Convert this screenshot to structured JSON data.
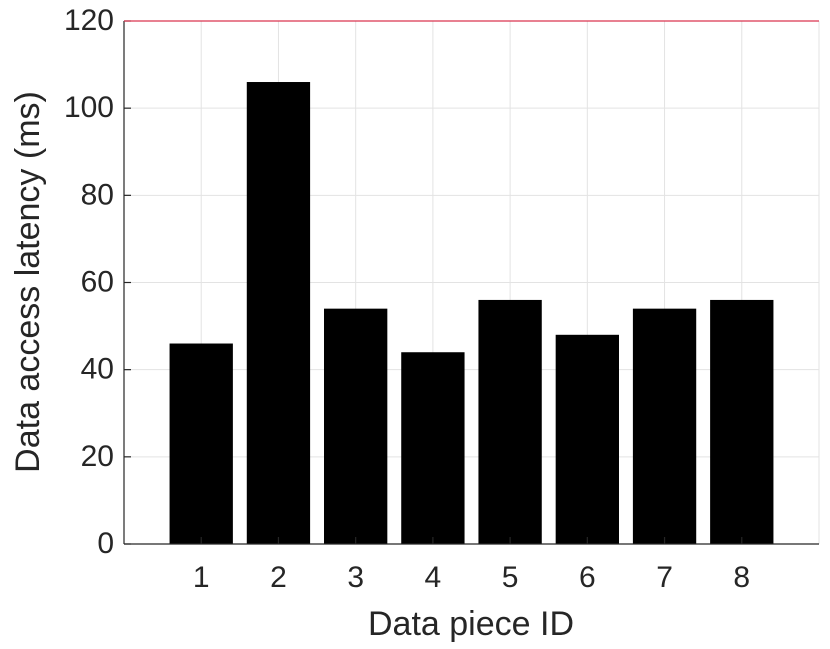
{
  "chart_data": {
    "type": "bar",
    "x_label": "Data piece ID",
    "y_label": "Data access latency (ms)",
    "x": [
      1,
      2,
      3,
      4,
      5,
      6,
      7,
      8
    ],
    "values": [
      46,
      106,
      54,
      44,
      56,
      48,
      54,
      56
    ],
    "color": "#000000",
    "xlim": [
      0,
      9
    ],
    "xticks": [
      1,
      2,
      3,
      4,
      5,
      6,
      7,
      8
    ],
    "ylim": [
      0,
      120
    ],
    "yticks": [
      0,
      20,
      40,
      60,
      80,
      100,
      120
    ],
    "grid": true
  }
}
